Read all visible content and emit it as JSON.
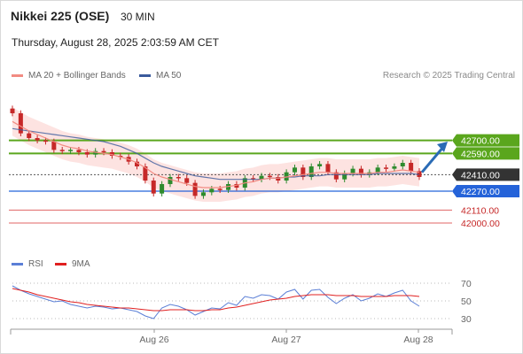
{
  "header": {
    "title": "Nikkei 225 (OSE)",
    "timeframe": "30 MIN",
    "datetime": "Thursday, August 28, 2025 2:03:59 AM CET"
  },
  "legend": {
    "ma20": "MA 20 + Bollinger Bands",
    "ma50": "MA 50",
    "ma20_color": "#f28b82",
    "ma50_color": "#3a5a9c"
  },
  "credit": "Research © 2025 Trading Central",
  "rsi_legend": {
    "rsi": "RSI",
    "ma9": "9MA",
    "rsi_color": "#5b7fd6",
    "ma9_color": "#e02020"
  },
  "colors": {
    "resistance": "#5aa61d",
    "pivot_bg": "#333333",
    "support_main": "#2563d9",
    "support": "#e06666",
    "arrow": "#2a6bb5",
    "up_candle": "#2e8b2e",
    "down_candle": "#c62828",
    "band_fill": "#fde0de"
  },
  "chart_data": {
    "type": "line",
    "title": "Nikkei 225 (OSE)",
    "timeframe": "30 MIN",
    "x_tick_labels": [
      "Aug 26",
      "Aug 27",
      "Aug 28"
    ],
    "y_range": [
      41640,
      43140
    ],
    "levels": [
      {
        "label": "42700.00",
        "value": 42700,
        "kind": "resistance"
      },
      {
        "label": "42590.00",
        "value": 42590,
        "kind": "resistance"
      },
      {
        "label": "42410.00",
        "value": 42410,
        "kind": "pivot"
      },
      {
        "label": "42270.00",
        "value": 42270,
        "kind": "support"
      },
      {
        "label": "42110.00",
        "value": 42110,
        "kind": "support"
      },
      {
        "label": "42000.00",
        "value": 42000,
        "kind": "support"
      }
    ],
    "price_close": [
      42930,
      42760,
      42720,
      42700,
      42690,
      42620,
      42610,
      42620,
      42600,
      42580,
      42610,
      42600,
      42570,
      42560,
      42520,
      42480,
      42360,
      42250,
      42330,
      42390,
      42380,
      42340,
      42230,
      42260,
      42290,
      42280,
      42330,
      42300,
      42380,
      42370,
      42400,
      42390,
      42360,
      42430,
      42470,
      42390,
      42480,
      42500,
      42430,
      42370,
      42420,
      42460,
      42410,
      42430,
      42470,
      42460,
      42480,
      42510,
      42440,
      42390
    ],
    "ma20": [
      42860,
      42820,
      42780,
      42750,
      42720,
      42690,
      42660,
      42640,
      42630,
      42610,
      42600,
      42590,
      42580,
      42560,
      42540,
      42510,
      42470,
      42420,
      42390,
      42370,
      42350,
      42330,
      42310,
      42300,
      42300,
      42300,
      42310,
      42320,
      42340,
      42350,
      42370,
      42380,
      42380,
      42390,
      42400,
      42410,
      42420,
      42430,
      42430,
      42420,
      42420,
      42420,
      42420,
      42420,
      42430,
      42430,
      42440,
      42450,
      42440,
      42430
    ],
    "ma50": [
      42800,
      42790,
      42780,
      42770,
      42760,
      42750,
      42740,
      42730,
      42720,
      42710,
      42700,
      42690,
      42670,
      42650,
      42620,
      42590,
      42550,
      42510,
      42480,
      42460,
      42440,
      42420,
      42400,
      42390,
      42380,
      42370,
      42370,
      42370,
      42370,
      42370,
      42370,
      42380,
      42380,
      42390,
      42390,
      42400,
      42400,
      42400,
      42410,
      42410,
      42410,
      42410,
      42410,
      42410,
      42420,
      42420,
      42420,
      42420,
      42420,
      42410
    ],
    "rsi_axis_labels": [
      "70",
      "50",
      "30"
    ],
    "rsi_range": [
      20,
      80
    ],
    "rsi": [
      67,
      62,
      58,
      55,
      52,
      49,
      50,
      46,
      44,
      42,
      44,
      43,
      41,
      42,
      40,
      38,
      33,
      30,
      42,
      46,
      44,
      40,
      34,
      38,
      42,
      41,
      48,
      45,
      55,
      53,
      57,
      56,
      52,
      60,
      63,
      52,
      62,
      63,
      54,
      47,
      53,
      57,
      50,
      53,
      58,
      55,
      59,
      62,
      50,
      44
    ],
    "rsi_ma9": [
      64,
      62,
      60,
      57,
      55,
      53,
      51,
      49,
      48,
      46,
      45,
      44,
      43,
      42,
      42,
      41,
      40,
      39,
      39,
      40,
      40,
      40,
      39,
      39,
      40,
      40,
      42,
      43,
      45,
      47,
      49,
      51,
      52,
      53,
      55,
      56,
      57,
      57,
      57,
      56,
      56,
      56,
      55,
      55,
      55,
      55,
      56,
      56,
      56,
      55
    ]
  }
}
